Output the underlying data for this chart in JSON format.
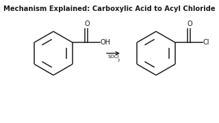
{
  "title": "Mechanism Explained: Carboxylic Acid to Acyl Chloride",
  "title_fontsize": 7.2,
  "title_bold": true,
  "background_color": "#ffffff",
  "line_color": "#1a1a1a",
  "line_width": 1.1,
  "figsize": [
    3.2,
    1.8
  ],
  "dpi": 100,
  "reagent": "SOCl",
  "reagent_sub": "2"
}
